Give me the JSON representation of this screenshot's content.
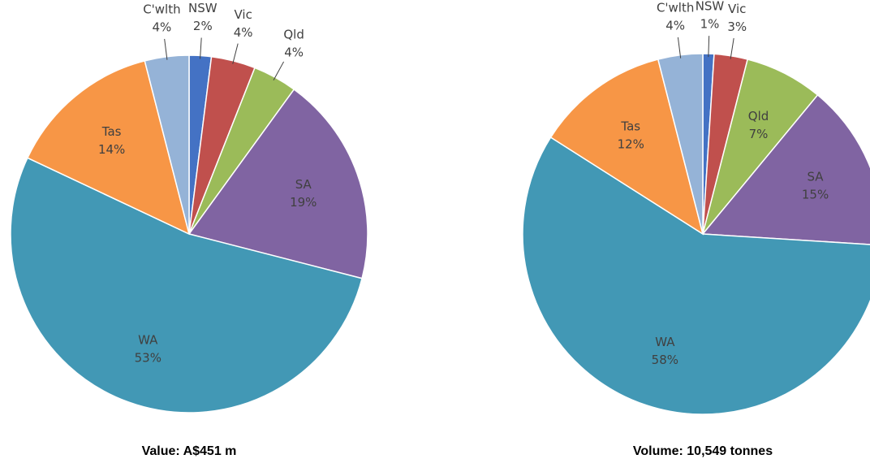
{
  "chart_data": [
    {
      "type": "pie",
      "title": "Value: A$451 m",
      "categories": [
        "NSW",
        "Vic",
        "Qld",
        "SA",
        "WA",
        "Tas",
        "C'wlth"
      ],
      "values": [
        2,
        4,
        4,
        19,
        53,
        14,
        4
      ],
      "value_labels": [
        "2%",
        "4%",
        "4%",
        "19%",
        "53%",
        "14%",
        "4%"
      ],
      "colors": [
        "#4472c4",
        "#c0504d",
        "#9bbb59",
        "#8064a2",
        "#4298b5",
        "#f79646",
        "#95b3d7"
      ]
    },
    {
      "type": "pie",
      "title": "Volume: 10,549 tonnes",
      "categories": [
        "NSW",
        "Vic",
        "Qld",
        "SA",
        "WA",
        "Tas",
        "C'wlth"
      ],
      "values": [
        1,
        3,
        7,
        15,
        58,
        12,
        4
      ],
      "value_labels": [
        "1%",
        "3%",
        "7%",
        "15%",
        "58%",
        "12%",
        "4%"
      ],
      "colors": [
        "#4472c4",
        "#c0504d",
        "#9bbb59",
        "#8064a2",
        "#4298b5",
        "#f79646",
        "#95b3d7"
      ]
    }
  ]
}
